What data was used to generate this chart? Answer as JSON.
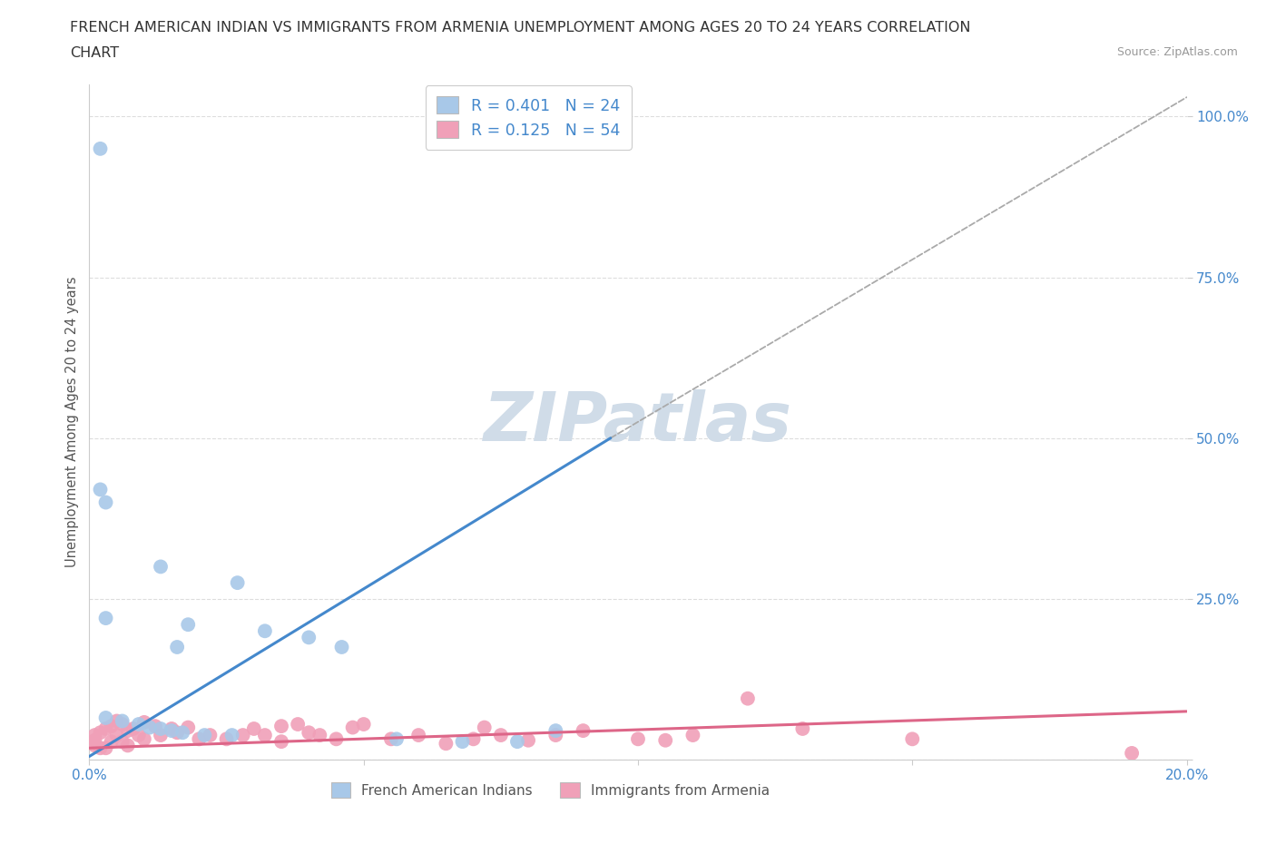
{
  "title_line1": "FRENCH AMERICAN INDIAN VS IMMIGRANTS FROM ARMENIA UNEMPLOYMENT AMONG AGES 20 TO 24 YEARS CORRELATION",
  "title_line2": "CHART",
  "source": "Source: ZipAtlas.com",
  "ylabel": "Unemployment Among Ages 20 to 24 years",
  "xlim": [
    0.0,
    0.2
  ],
  "ylim": [
    0.0,
    1.05
  ],
  "r_blue": 0.401,
  "n_blue": 24,
  "r_pink": 0.125,
  "n_pink": 54,
  "blue_color": "#a8c8e8",
  "pink_color": "#f0a0b8",
  "blue_line_color": "#4488cc",
  "pink_line_color": "#dd6688",
  "diag_line_color": "#aaaaaa",
  "watermark": "ZIPatlas",
  "watermark_color": "#d0dce8",
  "legend_label_blue": "French American Indians",
  "legend_label_pink": "Immigrants from Armenia",
  "blue_line_x0": 0.0,
  "blue_line_y0": 0.005,
  "blue_line_x1": 0.095,
  "blue_line_y1": 0.5,
  "pink_line_x0": 0.0,
  "pink_line_y0": 0.018,
  "pink_line_x1": 0.2,
  "pink_line_y1": 0.075,
  "diag_line_x0": 0.095,
  "diag_line_y0": 0.5,
  "diag_line_x1": 0.2,
  "diag_line_y1": 1.03,
  "blue_points": [
    [
      0.002,
      0.95
    ],
    [
      0.002,
      0.42
    ],
    [
      0.013,
      0.3
    ],
    [
      0.027,
      0.275
    ],
    [
      0.003,
      0.4
    ],
    [
      0.003,
      0.22
    ],
    [
      0.018,
      0.21
    ],
    [
      0.032,
      0.2
    ],
    [
      0.04,
      0.19
    ],
    [
      0.016,
      0.175
    ],
    [
      0.046,
      0.175
    ],
    [
      0.003,
      0.065
    ],
    [
      0.006,
      0.06
    ],
    [
      0.009,
      0.055
    ],
    [
      0.011,
      0.05
    ],
    [
      0.013,
      0.048
    ],
    [
      0.015,
      0.045
    ],
    [
      0.017,
      0.042
    ],
    [
      0.021,
      0.038
    ],
    [
      0.026,
      0.038
    ],
    [
      0.056,
      0.032
    ],
    [
      0.068,
      0.028
    ],
    [
      0.078,
      0.028
    ],
    [
      0.085,
      0.045
    ]
  ],
  "pink_points": [
    [
      0.001,
      0.038
    ],
    [
      0.001,
      0.03
    ],
    [
      0.001,
      0.022
    ],
    [
      0.002,
      0.042
    ],
    [
      0.002,
      0.018
    ],
    [
      0.003,
      0.048
    ],
    [
      0.003,
      0.018
    ],
    [
      0.004,
      0.052
    ],
    [
      0.004,
      0.028
    ],
    [
      0.005,
      0.06
    ],
    [
      0.005,
      0.038
    ],
    [
      0.006,
      0.055
    ],
    [
      0.006,
      0.028
    ],
    [
      0.007,
      0.045
    ],
    [
      0.007,
      0.022
    ],
    [
      0.008,
      0.048
    ],
    [
      0.009,
      0.038
    ],
    [
      0.01,
      0.058
    ],
    [
      0.01,
      0.032
    ],
    [
      0.012,
      0.052
    ],
    [
      0.013,
      0.038
    ],
    [
      0.015,
      0.048
    ],
    [
      0.016,
      0.042
    ],
    [
      0.018,
      0.05
    ],
    [
      0.02,
      0.032
    ],
    [
      0.022,
      0.038
    ],
    [
      0.025,
      0.032
    ],
    [
      0.028,
      0.038
    ],
    [
      0.03,
      0.048
    ],
    [
      0.032,
      0.038
    ],
    [
      0.035,
      0.052
    ],
    [
      0.035,
      0.028
    ],
    [
      0.038,
      0.055
    ],
    [
      0.04,
      0.042
    ],
    [
      0.042,
      0.038
    ],
    [
      0.045,
      0.032
    ],
    [
      0.048,
      0.05
    ],
    [
      0.05,
      0.055
    ],
    [
      0.055,
      0.032
    ],
    [
      0.06,
      0.038
    ],
    [
      0.065,
      0.025
    ],
    [
      0.07,
      0.032
    ],
    [
      0.072,
      0.05
    ],
    [
      0.075,
      0.038
    ],
    [
      0.08,
      0.03
    ],
    [
      0.085,
      0.038
    ],
    [
      0.09,
      0.045
    ],
    [
      0.1,
      0.032
    ],
    [
      0.105,
      0.03
    ],
    [
      0.11,
      0.038
    ],
    [
      0.12,
      0.095
    ],
    [
      0.13,
      0.048
    ],
    [
      0.15,
      0.032
    ],
    [
      0.19,
      0.01
    ]
  ],
  "background_color": "#ffffff",
  "grid_color": "#dddddd",
  "tick_color": "#4488cc",
  "spine_color": "#cccccc"
}
